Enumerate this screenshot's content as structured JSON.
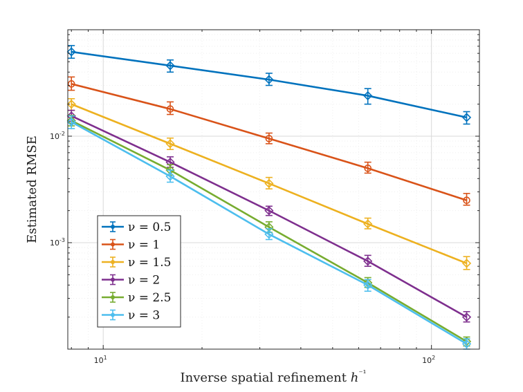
{
  "chart_data": {
    "type": "line",
    "scale": {
      "x": "log",
      "y": "log"
    },
    "xlabel": "Inverse spatial refinement h⁻¹",
    "ylabel": "Estimated RMSE",
    "xlim": [
      7.8,
      140
    ],
    "ylim": [
      0.0001,
      0.1
    ],
    "x_ticks": [
      {
        "value": 10,
        "base": "10",
        "exp": "1"
      },
      {
        "value": 100,
        "base": "10",
        "exp": "2"
      }
    ],
    "y_ticks": [
      {
        "value": 0.01,
        "base": "10",
        "exp": "-2"
      },
      {
        "value": 0.001,
        "base": "10",
        "exp": "-3"
      }
    ],
    "x": [
      8,
      16,
      32,
      64,
      128
    ],
    "series": [
      {
        "name": "ν = 0.5",
        "color": "#0072BD",
        "marker": "diamond",
        "values": [
          0.062,
          0.046,
          0.034,
          0.024,
          0.015
        ],
        "err_low": [
          0.054,
          0.04,
          0.03,
          0.02,
          0.013
        ],
        "err_high": [
          0.071,
          0.052,
          0.039,
          0.028,
          0.017
        ]
      },
      {
        "name": "ν = 1",
        "color": "#D95319",
        "marker": "circle",
        "values": [
          0.031,
          0.018,
          0.0095,
          0.005,
          0.0025
        ],
        "err_low": [
          0.027,
          0.016,
          0.0085,
          0.0045,
          0.00225
        ],
        "err_high": [
          0.036,
          0.021,
          0.0107,
          0.0057,
          0.0029
        ]
      },
      {
        "name": "ν = 1.5",
        "color": "#EDB120",
        "marker": "diamond",
        "values": [
          0.02,
          0.0085,
          0.0036,
          0.0015,
          0.00064
        ],
        "err_low": [
          0.0175,
          0.0075,
          0.0032,
          0.00135,
          0.00056
        ],
        "err_high": [
          0.0225,
          0.0096,
          0.0041,
          0.0017,
          0.00074
        ]
      },
      {
        "name": "ν = 2",
        "color": "#7E2F8E",
        "marker": "diamond",
        "values": [
          0.0155,
          0.0057,
          0.002,
          0.00067,
          0.0002
        ],
        "err_low": [
          0.0138,
          0.0051,
          0.0018,
          0.0006,
          0.00018
        ],
        "err_high": [
          0.0175,
          0.0064,
          0.0022,
          0.00076,
          0.000225
        ]
      },
      {
        "name": "ν = 2.5",
        "color": "#77AC30",
        "marker": "diamond",
        "values": [
          0.014,
          0.0048,
          0.0014,
          0.00042,
          0.000118
        ],
        "err_low": [
          0.0125,
          0.0043,
          0.00125,
          0.00038,
          0.000107
        ],
        "err_high": [
          0.0157,
          0.0054,
          0.00157,
          0.00047,
          0.00013
        ]
      },
      {
        "name": "ν = 3",
        "color": "#4DBEEE",
        "marker": "diamond",
        "values": [
          0.0136,
          0.0042,
          0.0012,
          0.0004,
          0.000112
        ],
        "err_low": [
          0.0118,
          0.0037,
          0.00107,
          0.00035,
          0.0001
        ],
        "err_high": [
          0.0155,
          0.0048,
          0.00135,
          0.00045,
          0.000125
        ]
      }
    ],
    "legend": {
      "position": "bottom-left"
    },
    "grid": true
  }
}
